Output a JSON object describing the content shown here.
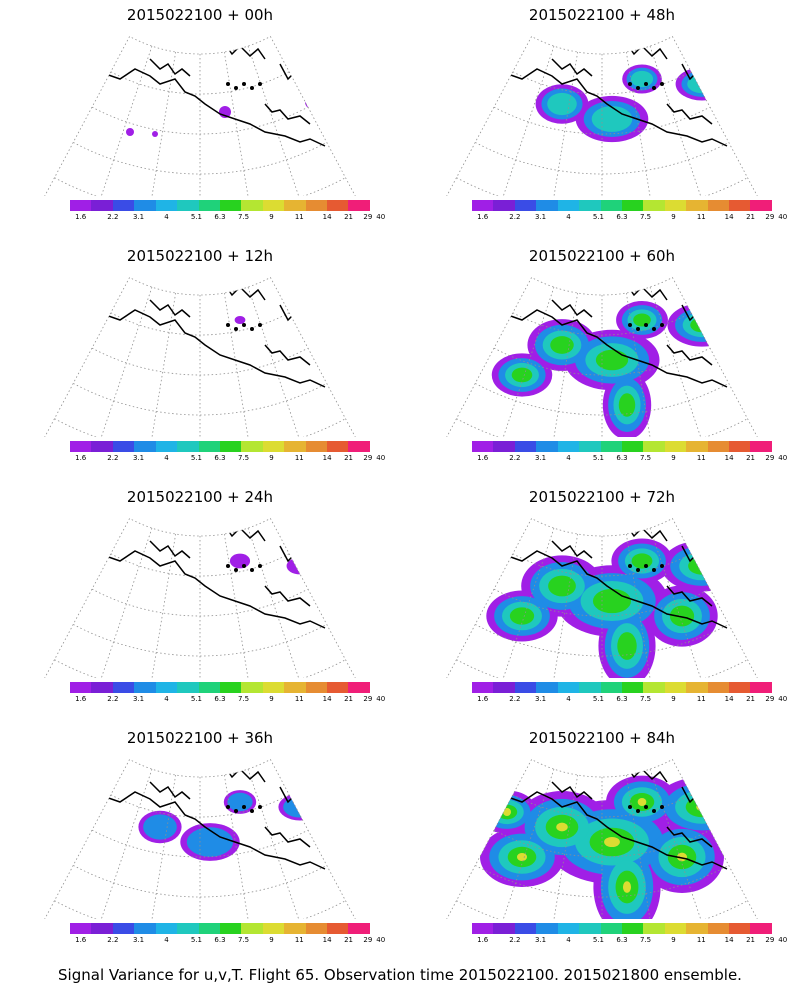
{
  "colors": {
    "scale": [
      "#a01fe6",
      "#7a1fd6",
      "#3a4ce6",
      "#1f8ce6",
      "#1fb4e6",
      "#1fc8be",
      "#1fd27a",
      "#28d21f",
      "#b4e632",
      "#dcdc32",
      "#e6b432",
      "#e68c32",
      "#e65a32",
      "#f01e78"
    ],
    "coast": "#000000",
    "grid": "#909090"
  },
  "colorbar_ticks": [
    "1.6",
    "2.2",
    "3.1",
    "4",
    "5.1",
    "6.3",
    "7.5",
    "9",
    "11",
    "14",
    "21",
    "29",
    "40"
  ],
  "panels": [
    {
      "title": "2015022100  + 00h",
      "spread": 0.02
    },
    {
      "title": "2015022100  + 48h",
      "spread": 0.55
    },
    {
      "title": "2015022100  + 12h",
      "spread": 0.15
    },
    {
      "title": "2015022100  + 60h",
      "spread": 0.72
    },
    {
      "title": "2015022100  + 24h",
      "spread": 0.28
    },
    {
      "title": "2015022100  + 72h",
      "spread": 0.85
    },
    {
      "title": "2015022100  + 36h",
      "spread": 0.45
    },
    {
      "title": "2015022100  + 84h",
      "spread": 1.0
    }
  ],
  "footer": "Signal Variance for u,v,T. Flight 65. Observation time 2015022100. 2015021800 ensemble."
}
